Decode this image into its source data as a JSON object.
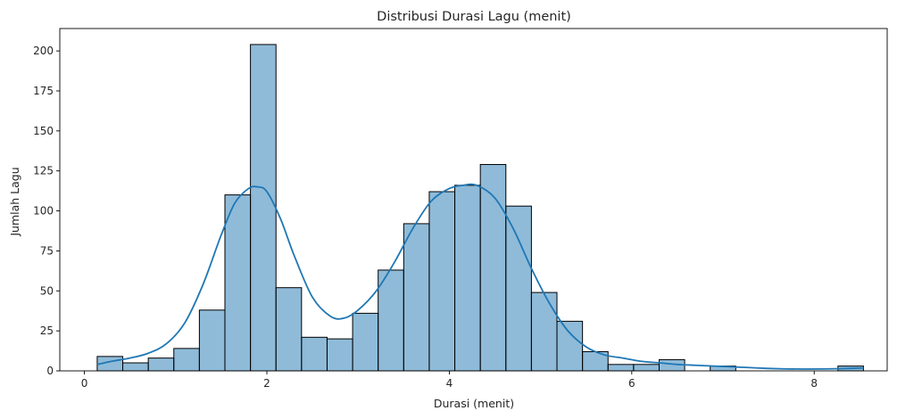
{
  "chart_data": {
    "type": "bar",
    "subtype": "histogram-with-kde",
    "title": "Distribusi Durasi Lagu (menit)",
    "xlabel": "Durasi (menit)",
    "ylabel": "Jumlah Lagu",
    "xlim": [
      -0.27,
      8.8
    ],
    "ylim": [
      0,
      214
    ],
    "xticks": [
      0,
      2,
      4,
      6,
      8
    ],
    "yticks": [
      0,
      25,
      50,
      75,
      100,
      125,
      150,
      175,
      200
    ],
    "grid": false,
    "legend": "none",
    "bin_edges": [
      0.14,
      0.42,
      0.7,
      0.98,
      1.26,
      1.54,
      1.82,
      2.1,
      2.38,
      2.66,
      2.94,
      3.22,
      3.5,
      3.78,
      4.06,
      4.34,
      4.62,
      4.9,
      5.18,
      5.46,
      5.74,
      6.02,
      6.3,
      6.58,
      6.86,
      7.14,
      7.42,
      7.7,
      7.98,
      8.26,
      8.54
    ],
    "counts": [
      9,
      5,
      8,
      14,
      38,
      110,
      204,
      52,
      21,
      20,
      36,
      63,
      92,
      112,
      116,
      129,
      103,
      49,
      31,
      12,
      4,
      4,
      7,
      0,
      3,
      0,
      0,
      0,
      0,
      3
    ],
    "kde": {
      "x": [
        0.14,
        0.3,
        0.5,
        0.7,
        0.9,
        1.1,
        1.3,
        1.5,
        1.65,
        1.8,
        1.9,
        2.0,
        2.15,
        2.3,
        2.5,
        2.7,
        2.85,
        3.0,
        3.2,
        3.4,
        3.6,
        3.8,
        4.0,
        4.15,
        4.3,
        4.5,
        4.7,
        4.9,
        5.1,
        5.3,
        5.5,
        5.7,
        5.9,
        6.1,
        6.3,
        6.5,
        6.7,
        6.9,
        7.1,
        7.3,
        7.5,
        7.7,
        7.9,
        8.1,
        8.3,
        8.54
      ],
      "y": [
        4,
        6,
        8,
        11,
        17,
        30,
        54,
        85,
        105,
        114,
        115,
        112,
        95,
        72,
        46,
        34,
        33,
        38,
        50,
        68,
        89,
        106,
        114,
        116,
        116,
        108,
        89,
        64,
        42,
        25,
        15,
        10,
        8,
        6,
        5,
        4,
        3.5,
        3,
        2.5,
        2,
        1.5,
        1.2,
        1.1,
        1.2,
        1.4,
        1.8
      ]
    },
    "bar_color": "#1f77b4",
    "bar_opacity": 0.5,
    "bar_edge_color": "#000000",
    "kde_color": "#1f77b4"
  }
}
